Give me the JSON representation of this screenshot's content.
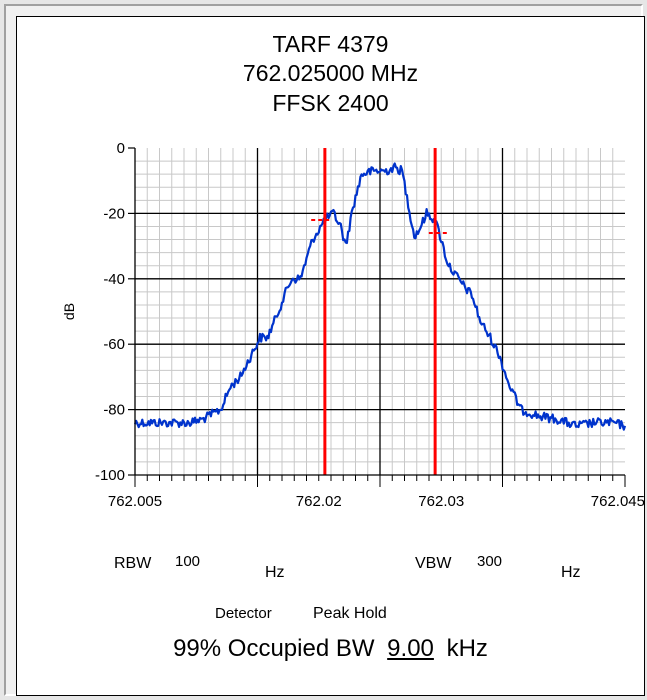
{
  "chart_data": {
    "type": "line",
    "title_lines": [
      "TARF 4379",
      "762.025000 MHz",
      "FFSK 2400"
    ],
    "xlabel": "",
    "ylabel": "dB",
    "xlim": [
      762.005,
      762.045
    ],
    "ylim": [
      -100,
      0
    ],
    "x_ticks": [
      762.005,
      762.02,
      762.03,
      762.045
    ],
    "x_tick_labels": [
      "762.005",
      "762.02",
      "762.03",
      "762.045"
    ],
    "y_ticks": [
      0,
      -20,
      -40,
      -60,
      -80,
      -100
    ],
    "y_tick_labels": [
      "0",
      "-20",
      "-40",
      "-60",
      "-80",
      "-100"
    ],
    "grid": true,
    "series": [
      {
        "color": "#0033cc",
        "x": [
          762.005,
          762.0065,
          762.008,
          762.0095,
          762.0105,
          762.012,
          762.0128,
          762.0136,
          762.0144,
          762.0152,
          762.0158,
          762.0165,
          762.0172,
          762.0178,
          762.0185,
          762.019,
          762.0195,
          762.02,
          762.0205,
          762.0212,
          762.0218,
          762.0222,
          762.0228,
          762.0235,
          762.0245,
          762.0255,
          762.0262,
          762.0268,
          762.0272,
          762.0278,
          762.0282,
          762.0288,
          762.0295,
          762.03,
          762.0305,
          762.031,
          762.0318,
          762.0325,
          762.0332,
          762.034,
          762.0347,
          762.0355,
          762.0365,
          762.038,
          762.0395,
          762.041,
          762.0425,
          762.044,
          762.045
        ],
        "y": [
          -84,
          -84,
          -84,
          -84,
          -83,
          -80,
          -73,
          -70,
          -64,
          -58,
          -58,
          -52,
          -45,
          -40,
          -40,
          -34,
          -28,
          -25,
          -22,
          -20,
          -24,
          -30,
          -18,
          -8,
          -7,
          -7,
          -6,
          -7,
          -15,
          -27,
          -25,
          -20,
          -22,
          -28,
          -35,
          -38,
          -42,
          -45,
          -53,
          -58,
          -63,
          -72,
          -80,
          -82,
          -83,
          -85,
          -84,
          -84,
          -85
        ]
      }
    ],
    "markers": [
      {
        "x": 762.0205,
        "color": "#ff0000"
      },
      {
        "x": 762.0295,
        "color": "#ff0000"
      }
    ],
    "marker_dashes": [
      {
        "x": 762.0202,
        "y": -22
      },
      {
        "x": 762.0298,
        "y": -26
      }
    ]
  },
  "settings": {
    "rbw_label": "RBW",
    "rbw_value": "100",
    "rbw_unit": "Hz",
    "vbw_label": "VBW",
    "vbw_value": "300",
    "vbw_unit": "Hz",
    "detector_label": "Detector",
    "detector_value": "Peak Hold",
    "occupied_prefix": "99% Occupied BW",
    "occupied_value": "9.00",
    "occupied_unit": "kHz"
  }
}
